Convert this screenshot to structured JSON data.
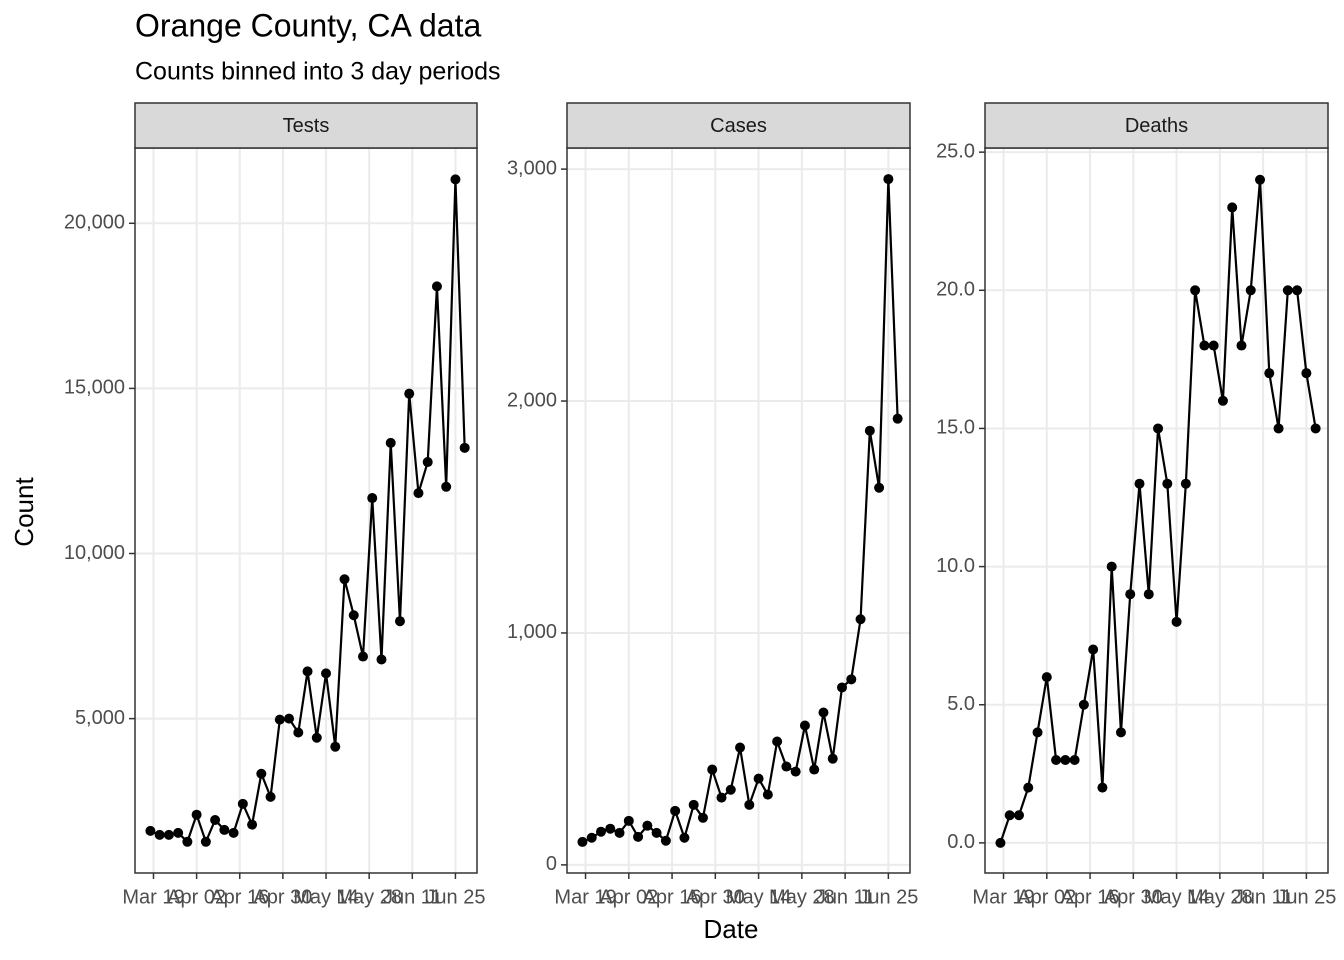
{
  "chart_data": {
    "title": "Orange County, CA data",
    "subtitle": "Counts binned into 3 day periods",
    "x_label": "Date",
    "y_label": "Count",
    "panels": [
      {
        "type": "line",
        "title": "Tests",
        "color": "#000000",
        "grid": true,
        "x": [
          "Mar 18",
          "Mar 21",
          "Mar 24",
          "Mar 27",
          "Mar 30",
          "Apr 02",
          "Apr 05",
          "Apr 08",
          "Apr 11",
          "Apr 14",
          "Apr 17",
          "Apr 20",
          "Apr 23",
          "Apr 26",
          "Apr 29",
          "May 02",
          "May 05",
          "May 08",
          "May 11",
          "May 14",
          "May 17",
          "May 20",
          "May 23",
          "May 26",
          "May 29",
          "Jun 01",
          "Jun 04",
          "Jun 07",
          "Jun 10",
          "Jun 13",
          "Jun 16",
          "Jun 19",
          "Jun 22",
          "Jun 25",
          "Jun 28"
        ],
        "values": [
          1600,
          1480,
          1480,
          1540,
          1270,
          2090,
          1270,
          1930,
          1630,
          1540,
          2420,
          1790,
          3330,
          2630,
          4970,
          5000,
          4580,
          6430,
          4420,
          6370,
          4150,
          9220,
          8130,
          6880,
          11680,
          6790,
          13350,
          7950,
          14840,
          11830,
          12770,
          18090,
          12020,
          21330,
          13200
        ],
        "xlim": [
          "Mar 13",
          "Jul 02"
        ],
        "xticks": [
          "Mar 19",
          "Apr 02",
          "Apr 16",
          "Apr 30",
          "May 14",
          "May 28",
          "Jun 11",
          "Jun 25"
        ],
        "ylim": [
          325,
          22280
        ],
        "yticks": [
          {
            "value": 5000,
            "label": "5,000"
          },
          {
            "value": 10000,
            "label": "10,000"
          },
          {
            "value": 15000,
            "label": "15,000"
          },
          {
            "value": 20000,
            "label": "20,000"
          }
        ]
      },
      {
        "type": "line",
        "title": "Cases",
        "color": "#000000",
        "grid": true,
        "x": [
          "Mar 18",
          "Mar 21",
          "Mar 24",
          "Mar 27",
          "Mar 30",
          "Apr 02",
          "Apr 05",
          "Apr 08",
          "Apr 11",
          "Apr 14",
          "Apr 17",
          "Apr 20",
          "Apr 23",
          "Apr 26",
          "Apr 29",
          "May 02",
          "May 05",
          "May 08",
          "May 11",
          "May 14",
          "May 17",
          "May 20",
          "May 23",
          "May 26",
          "May 29",
          "Jun 01",
          "Jun 04",
          "Jun 07",
          "Jun 10",
          "Jun 13",
          "Jun 16",
          "Jun 19",
          "Jun 22",
          "Jun 25",
          "Jun 28"
        ],
        "values": [
          99,
          117,
          143,
          156,
          138,
          190,
          121,
          169,
          138,
          104,
          233,
          117,
          259,
          203,
          411,
          290,
          324,
          506,
          259,
          372,
          303,
          532,
          424,
          402,
          601,
          411,
          657,
          458,
          765,
          800,
          1059,
          1872,
          1626,
          2957,
          1924
        ],
        "xlim": [
          "Mar 13",
          "Jul 02"
        ],
        "xticks": [
          "Mar 19",
          "Apr 02",
          "Apr 16",
          "Apr 30",
          "May 14",
          "May 28",
          "Jun 11",
          "Jun 25"
        ],
        "ylim": [
          -35,
          3091
        ],
        "yticks": [
          0,
          {
            "value": 1000,
            "label": "1,000"
          },
          {
            "value": 2000,
            "label": "2,000"
          },
          {
            "value": 3000,
            "label": "3,000"
          }
        ]
      },
      {
        "type": "line",
        "title": "Deaths",
        "color": "#000000",
        "grid": true,
        "x": [
          "Mar 18",
          "Mar 21",
          "Mar 24",
          "Mar 27",
          "Mar 30",
          "Apr 02",
          "Apr 05",
          "Apr 08",
          "Apr 11",
          "Apr 14",
          "Apr 17",
          "Apr 20",
          "Apr 23",
          "Apr 26",
          "Apr 29",
          "May 02",
          "May 05",
          "May 08",
          "May 11",
          "May 14",
          "May 17",
          "May 20",
          "May 23",
          "May 26",
          "May 29",
          "Jun 01",
          "Jun 04",
          "Jun 07",
          "Jun 10",
          "Jun 13",
          "Jun 16",
          "Jun 19",
          "Jun 22",
          "Jun 25",
          "Jun 28"
        ],
        "values": [
          0,
          1,
          1,
          2,
          4,
          6,
          3,
          3,
          3,
          5,
          7,
          2,
          10,
          4,
          9,
          13,
          9,
          15,
          13,
          8,
          13,
          20,
          18,
          18,
          16,
          23,
          18,
          20,
          24,
          17,
          15,
          20,
          20,
          17,
          15
        ],
        "xlim": [
          "Mar 13",
          "Jul 02"
        ],
        "xticks": [
          "Mar 19",
          "Apr 02",
          "Apr 16",
          "Apr 30",
          "May 14",
          "May 28",
          "Jun 11",
          "Jun 25"
        ],
        "ylim": [
          -1.09,
          25.15
        ],
        "yticks": [
          {
            "value": 0,
            "label": "0.0"
          },
          {
            "value": 5,
            "label": "5.0"
          },
          {
            "value": 10,
            "label": "10.0"
          },
          {
            "value": 15,
            "label": "15.0"
          },
          {
            "value": 20,
            "label": "20.0"
          },
          {
            "value": 25,
            "label": "25.0"
          }
        ]
      }
    ]
  }
}
